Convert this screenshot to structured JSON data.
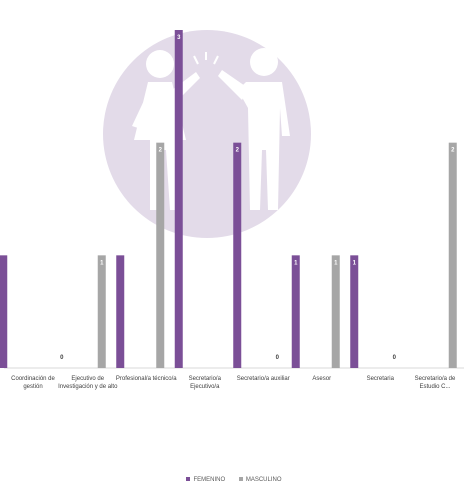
{
  "chart_data": {
    "type": "bar",
    "title": "",
    "xlabel": "",
    "ylabel": "",
    "ylim": [
      0,
      3
    ],
    "grid": false,
    "legend_position": "bottom",
    "categories": [
      "Coordinación de gestión",
      "Ejecutivo de Investigación y de alto",
      "Profesional/a técnico/a",
      "Secretario/a Ejecutivo/a",
      "Secretario/a auxiliar",
      "Asesor",
      "Secretaria",
      "Secretario/a de Estudio C..."
    ],
    "series": [
      {
        "name": "FEMENINO",
        "color": "#7b4f97",
        "values": [
          1,
          0,
          1,
          3,
          2,
          1,
          1,
          0
        ]
      },
      {
        "name": "MASCULINO",
        "color": "#a6a6a6",
        "values": [
          0,
          1,
          2,
          0,
          0,
          1,
          0,
          2
        ]
      }
    ],
    "data_labels": [
      [
        "",
        "0",
        "",
        "3",
        "2",
        "1",
        "1",
        ""
      ],
      [
        "",
        "1",
        "2",
        "",
        "0",
        "1",
        "0",
        "2"
      ]
    ],
    "background_icon": "women-men-equality-icon"
  }
}
